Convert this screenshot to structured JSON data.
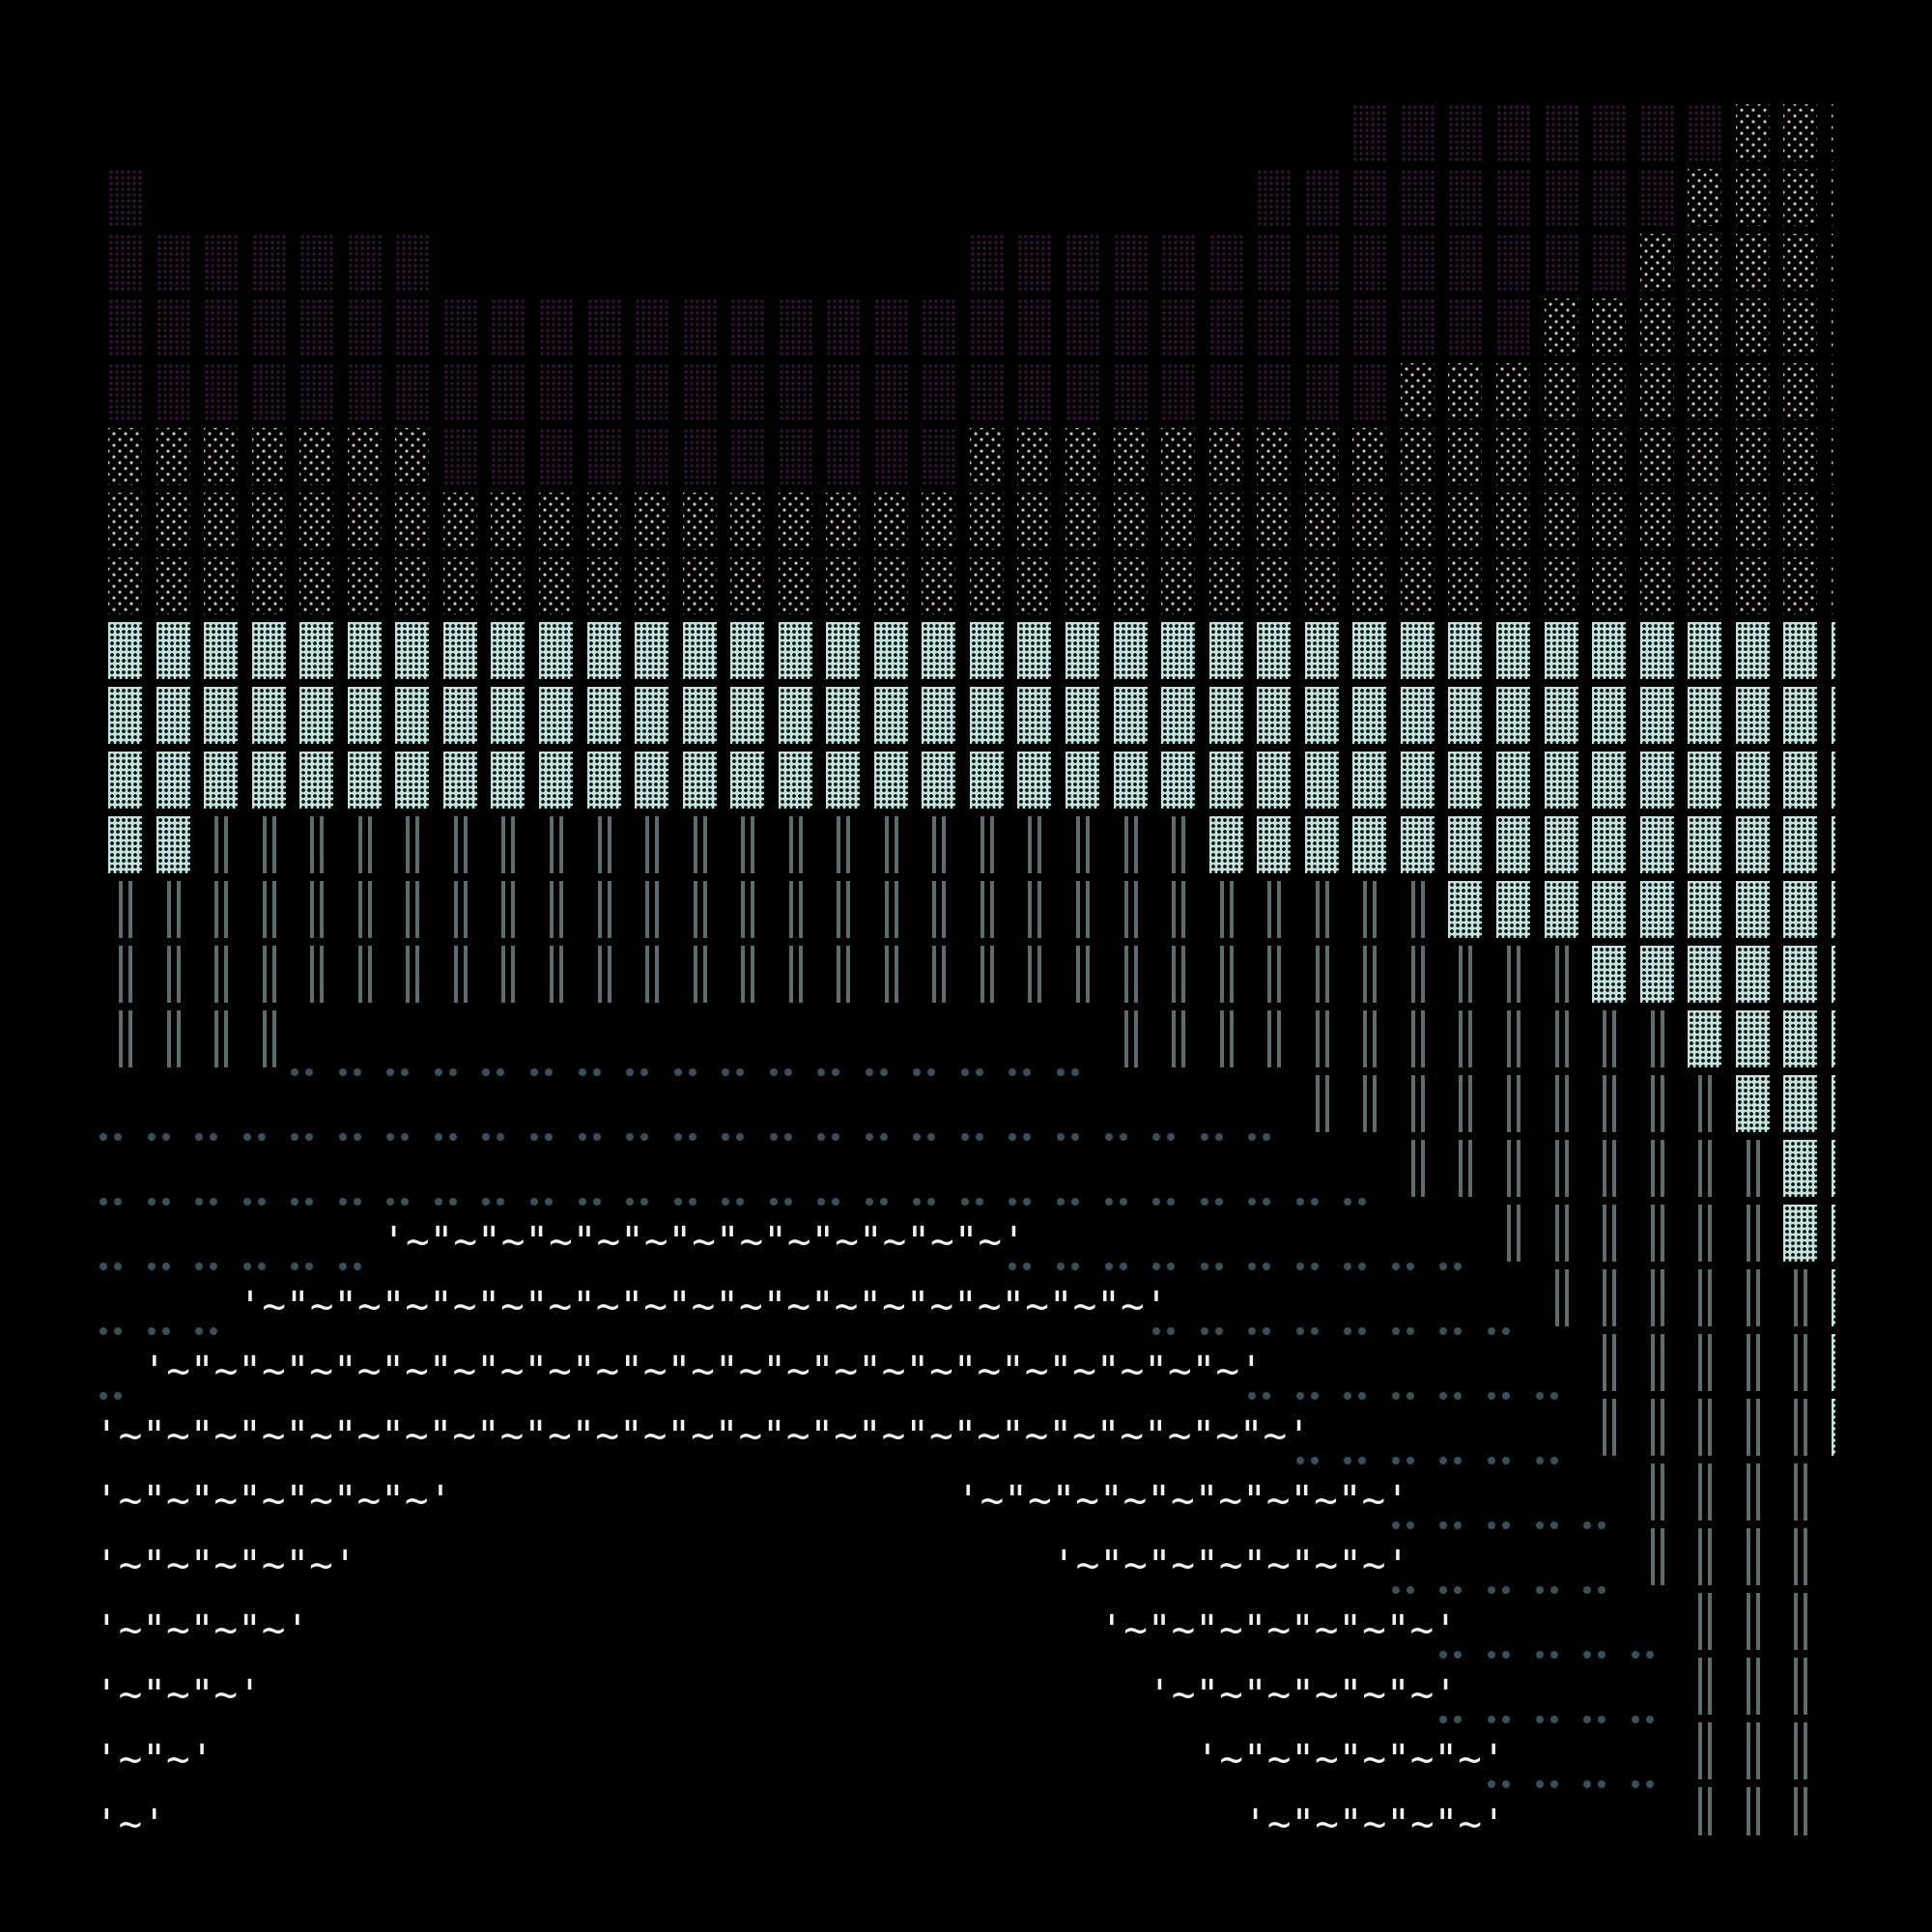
{
  "palette": {
    "background": "#000000",
    "purple_dots": "#3a1a3c",
    "pink_dots": "#d9c0cc",
    "cyan_block": "#c2e2de",
    "bars": "#5b6d6e",
    "dots": "#36505c",
    "wave_text": "#f2f2f6"
  },
  "wave_glyphs": {
    "open": "'",
    "mid": "\"",
    "tilde": "~",
    "close": "'"
  },
  "legend_codes": {
    ".": "empty",
    "P": "purple-dotted-block",
    "K": "pink-dotted-block",
    "C": "cyan-block",
    "B": "double-bar",
    "D": "double-dot",
    "W": "wave-text"
  },
  "grid_rows": [
    "26.8P3K",
    "1P23.9P4K",
    "7P11.14P5K",
    "30P7K",
    "27P10K",
    "7K11P19K",
    "37K",
    "37K",
    "37C",
    "37C",
    "37C",
    "2C21B14C",
    "28B9C",
    "31B6C",
    "4B17D12B4C",
    "25D9B3C",
    "27D8B2C",
    "6D13W10D6B2C",
    "3D19W8D6B1C",
    "1D23W7D5B1C",
    "25W6D5B1C",
    "7W11.9W5D5B",
    "5W15.7W5D5B",
    "4W17.7W5D4B",
    "3W19.6W5D4B",
    "2W21.6W4D4B",
    "1W23.5W4.4B"
  ]
}
